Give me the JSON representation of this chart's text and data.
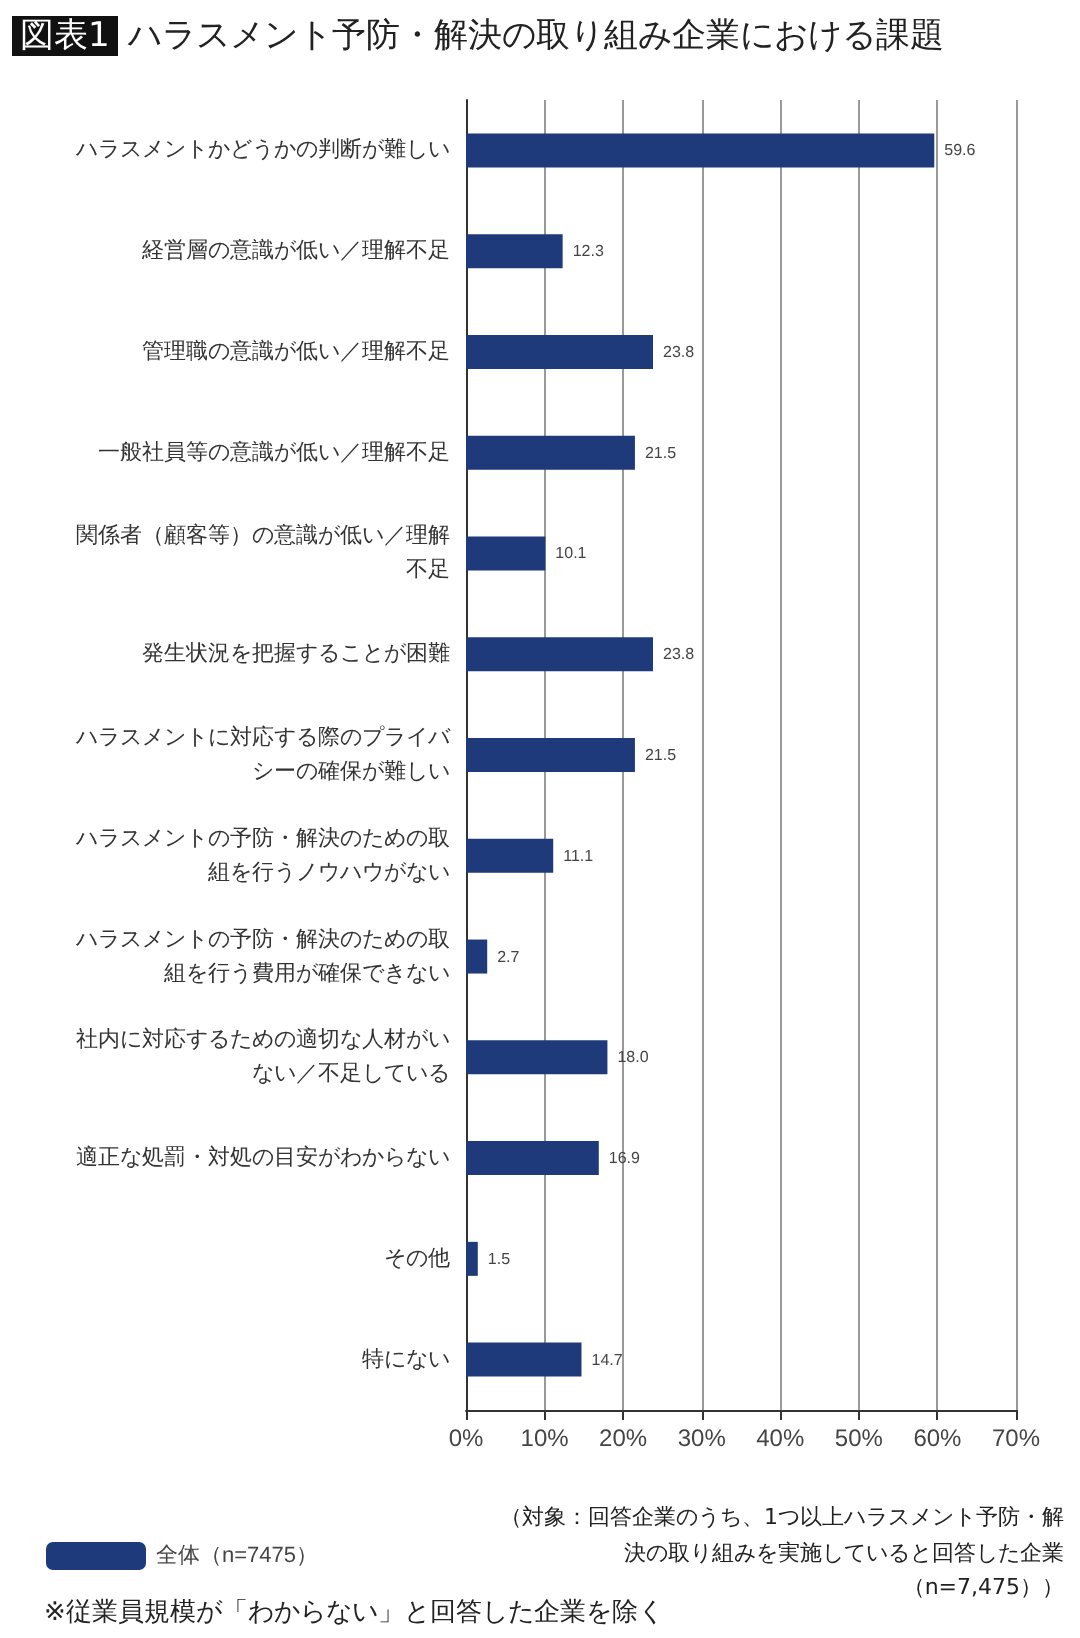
{
  "chart_data": {
    "type": "bar",
    "orientation": "horizontal",
    "title": "図表1 ハラスメント予防・解決の取り組み企業における課題",
    "categories": [
      "ハラスメントかどうかの判断が難しい",
      "経営層の意識が低い／理解不足",
      "管理職の意識が低い／理解不足",
      "一般社員等の意識が低い／理解不足",
      "関係者（顧客等）の意識が低い／理解不足",
      "発生状況を把握することが困難",
      "ハラスメントに対応する際のプライバシーの確保が難しい",
      "ハラスメントの予防・解決のための取組を行うノウハウがない",
      "ハラスメントの予防・解決のための取組を行う費用が確保できない",
      "社内に対応するための適切な人材がいない／不足している",
      "適正な処罰・対処の目安がわからない",
      "その他",
      "特にない"
    ],
    "series": [
      {
        "name": "全体（n=7475）",
        "color": "#1f3a7a",
        "values": [
          59.6,
          12.3,
          23.8,
          21.5,
          10.1,
          23.8,
          21.5,
          11.1,
          2.7,
          18.0,
          16.9,
          1.5,
          14.7
        ]
      }
    ],
    "xlim": [
      0,
      70
    ],
    "xticks": [
      {
        "value": 0,
        "label": "0%"
      },
      {
        "value": 10,
        "label": "10%"
      },
      {
        "value": 20,
        "label": "20%"
      },
      {
        "value": 30,
        "label": "30%"
      },
      {
        "value": 40,
        "label": "40%"
      },
      {
        "value": 50,
        "label": "50%"
      },
      {
        "value": 60,
        "label": "60%"
      },
      {
        "value": 70,
        "label": "70%"
      }
    ],
    "value_labels": [
      "59.6",
      "12.3",
      "23.8",
      "21.5",
      "10.1",
      "23.8",
      "21.5",
      "11.1",
      "2.7",
      "18.0",
      "16.9",
      "1.5",
      "14.7"
    ],
    "grid": "x",
    "legend": "bottom left",
    "annotations": [
      "（対象：回答企業のうち、1つ以上ハラスメント予防・解決の取り組みを実施していると回答した企業（n=7,475））",
      "※従業員規模が「わからない」と回答した企業を除く"
    ]
  }
}
